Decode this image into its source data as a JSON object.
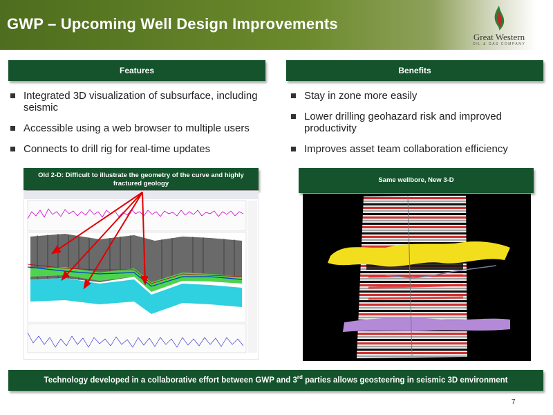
{
  "header": {
    "title": "GWP – Upcoming Well Design Improvements",
    "logo": {
      "name": "Great Western",
      "sub": "OIL & GAS COMPANY"
    }
  },
  "features": {
    "heading": "Features",
    "items": [
      "Integrated 3D visualization of subsurface, including seismic",
      "Accessible using a web browser to multiple users",
      "Connects to drill rig for real-time updates"
    ]
  },
  "benefits": {
    "heading": "Benefits",
    "items": [
      "Stay in zone more easily",
      "Lower drilling geohazard risk and improved productivity",
      "Improves asset team collaboration efficiency"
    ]
  },
  "old_view": {
    "caption": "Old 2-D: Difficult to illustrate the geometry of the curve and highly fractured geology"
  },
  "new_view": {
    "caption": "Same wellbore, New 3-D"
  },
  "footer": {
    "text_before": "Technology developed in a collaborative effort between GWP and 3",
    "superscript": "rd",
    "text_after": " parties allows geosteering in seismic 3D environment"
  },
  "page_number": "7",
  "colors": {
    "header_green": "#4e6d1e",
    "bar_green": "#14532b",
    "logo_red": "#c0272d",
    "logo_green": "#2e7d32",
    "arrow_red": "#e00000"
  }
}
